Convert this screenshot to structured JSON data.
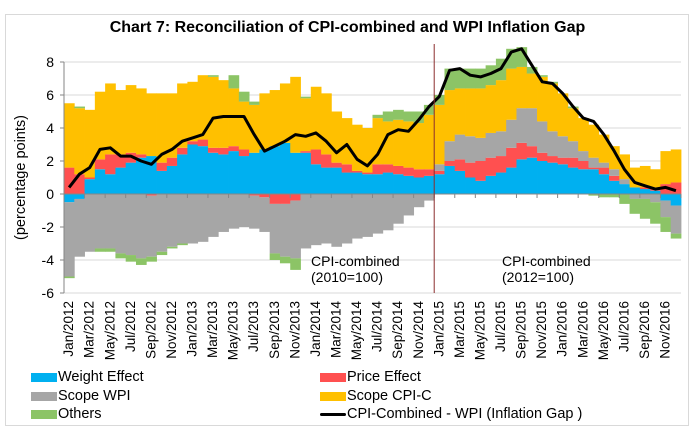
{
  "chart_data": {
    "type": "bar",
    "subtype": "stacked-bar-with-line",
    "title": "Chart 7: Reconciliation of CPI-combined and WPI Inflation Gap",
    "ylabel": "(percentage points)",
    "xlabel": "",
    "ylim": [
      -6,
      8
    ],
    "yticks": [
      -6,
      -4,
      -2,
      0,
      2,
      4,
      6,
      8
    ],
    "grid": true,
    "legend_position": "bottom",
    "categories": [
      "Jan/2012",
      "Feb/2012",
      "Mar/2012",
      "Apr/2012",
      "May/2012",
      "Jun/2012",
      "Jul/2012",
      "Aug/2012",
      "Sep/2012",
      "Oct/2012",
      "Nov/2012",
      "Dec/2012",
      "Jan/2013",
      "Feb/2013",
      "Mar/2013",
      "Apr/2013",
      "May/2013",
      "Jun/2013",
      "Jul/2013",
      "Aug/2013",
      "Sep/2013",
      "Oct/2013",
      "Nov/2013",
      "Dec/2013",
      "Jan/2014",
      "Feb/2014",
      "Mar/2014",
      "Apr/2014",
      "May/2014",
      "Jun/2014",
      "Jul/2014",
      "Aug/2014",
      "Sep/2014",
      "Oct/2014",
      "Nov/2014",
      "Dec/2014",
      "Jan/2015",
      "Feb/2015",
      "Mar/2015",
      "Apr/2015",
      "May/2015",
      "Jun/2015",
      "Jul/2015",
      "Aug/2015",
      "Sep/2015",
      "Oct/2015",
      "Nov/2015",
      "Dec/2015",
      "Jan/2016",
      "Feb/2016",
      "Mar/2016",
      "Apr/2016",
      "May/2016",
      "Jun/2016",
      "Jul/2016",
      "Aug/2016",
      "Sep/2016",
      "Oct/2016",
      "Nov/2016",
      "Dec/2016"
    ],
    "tick_labels": [
      "Jan/2012",
      "Mar/2012",
      "May/2012",
      "Jul/2012",
      "Sep/2012",
      "Nov/2012",
      "Jan/2013",
      "Mar/2013",
      "May/2013",
      "Jul/2013",
      "Sep/2013",
      "Nov/2013",
      "Jan/2014",
      "Mar/2014",
      "May/2014",
      "Jul/2014",
      "Sep/2014",
      "Nov/2014",
      "Jan/2015",
      "Mar/2015",
      "May/2015",
      "Jul/2015",
      "Sep/2015",
      "Nov/2015",
      "Jan/2016",
      "Mar/2016",
      "May/2016",
      "Jul/2016",
      "Sep/2016",
      "Nov/2016"
    ],
    "series": [
      {
        "name": "Weight Effect",
        "color": "#00b0f0",
        "kind": "bar",
        "values": [
          -0.5,
          -0.3,
          0.9,
          1.5,
          1.2,
          1.6,
          1.9,
          2.2,
          2.3,
          1.4,
          1.7,
          2.4,
          3.0,
          2.9,
          2.5,
          2.4,
          2.6,
          2.3,
          2.5,
          2.7,
          2.9,
          3.1,
          2.5,
          2.5,
          1.8,
          1.6,
          1.6,
          1.3,
          1.3,
          1.2,
          1.2,
          1.3,
          1.2,
          1.1,
          1.0,
          1.1,
          1.2,
          1.7,
          1.4,
          1.0,
          0.8,
          1.1,
          1.3,
          1.6,
          2.1,
          2.2,
          2.0,
          1.9,
          1.8,
          1.6,
          1.5,
          1.5,
          1.2,
          0.8,
          0.6,
          0.4,
          0.3,
          0.2,
          -0.4,
          -0.7
        ]
      },
      {
        "name": "Price Effect",
        "color": "#ff5050",
        "kind": "bar",
        "values": [
          1.6,
          1.2,
          0.1,
          0.6,
          1.2,
          0.8,
          0.6,
          0.2,
          -0.1,
          0.5,
          0.5,
          0.4,
          0.2,
          0.4,
          0.3,
          0.4,
          0.3,
          0.4,
          -0.1,
          -0.2,
          -0.6,
          -0.6,
          -0.4,
          0.1,
          0.9,
          0.8,
          0.3,
          0.5,
          0.1,
          0.1,
          0.6,
          0.5,
          0.5,
          0.5,
          0.5,
          0.4,
          0.2,
          0.3,
          0.7,
          0.9,
          1.2,
          1.1,
          1.0,
          1.2,
          1.0,
          0.7,
          0.5,
          0.4,
          0.4,
          0.6,
          0.5,
          0.1,
          0.4,
          0.3,
          0.0,
          0.0,
          0.1,
          0.2,
          0.6,
          0.7
        ]
      },
      {
        "name": "Scope WPI",
        "color": "#a6a6a6",
        "kind": "bar",
        "values": [
          -4.5,
          -3.5,
          -3.5,
          -3.3,
          -3.3,
          -3.6,
          -3.7,
          -3.9,
          -3.7,
          -3.5,
          -3.2,
          -3.0,
          -3.0,
          -2.9,
          -2.6,
          -2.3,
          -2.1,
          -2.0,
          -2.0,
          -2.1,
          -3.0,
          -3.2,
          -3.5,
          -3.3,
          -3.1,
          -3.0,
          -3.2,
          -3.0,
          -2.7,
          -2.6,
          -2.4,
          -2.2,
          -1.8,
          -1.3,
          -0.8,
          -0.4,
          0.4,
          1.2,
          1.5,
          1.6,
          1.4,
          1.5,
          1.5,
          1.7,
          2.1,
          2.3,
          1.9,
          1.5,
          1.3,
          1.0,
          0.6,
          0.6,
          0.3,
          0.4,
          0.3,
          -0.3,
          -0.3,
          -0.5,
          -1.0,
          -1.7
        ]
      },
      {
        "name": "Scope CPI-C",
        "color": "#ffc000",
        "kind": "bar",
        "values": [
          3.9,
          4.0,
          4.1,
          4.1,
          4.3,
          3.9,
          4.1,
          4.0,
          3.8,
          4.2,
          3.9,
          3.9,
          3.6,
          3.9,
          4.3,
          4.1,
          3.5,
          2.9,
          2.9,
          3.4,
          3.4,
          3.6,
          4.6,
          3.2,
          3.8,
          3.7,
          3.1,
          2.8,
          2.8,
          2.7,
          2.8,
          2.6,
          2.8,
          2.8,
          2.8,
          3.3,
          3.6,
          3.1,
          2.8,
          2.9,
          3.0,
          2.9,
          3.1,
          3.1,
          2.5,
          2.1,
          2.7,
          2.9,
          2.6,
          2.0,
          2.0,
          2.0,
          1.7,
          1.4,
          1.5,
          1.2,
          1.3,
          1.1,
          2.0,
          2.0
        ]
      },
      {
        "name": "Others",
        "color": "#8cc466",
        "kind": "bar",
        "values": [
          -0.1,
          0.1,
          0.0,
          -0.2,
          -0.2,
          -0.3,
          -0.4,
          -0.4,
          -0.3,
          -0.2,
          -0.1,
          -0.1,
          0.0,
          0.0,
          0.1,
          0.0,
          0.8,
          0.6,
          0.2,
          0.0,
          -0.4,
          -0.4,
          -0.7,
          0.1,
          0.0,
          0.0,
          0.0,
          0.0,
          0.0,
          0.0,
          0.2,
          0.6,
          0.6,
          0.6,
          0.7,
          0.6,
          0.6,
          1.3,
          1.2,
          1.2,
          1.2,
          1.2,
          1.3,
          1.2,
          1.2,
          0.4,
          0.1,
          0.1,
          0.0,
          0.1,
          0.0,
          -0.1,
          -0.2,
          -0.2,
          -0.6,
          -0.9,
          -1.2,
          -1.3,
          -0.9,
          -0.3
        ]
      },
      {
        "name": "CPI-Combined - WPI (Inflation Gap )",
        "color": "#000000",
        "kind": "line",
        "values": [
          0.4,
          1.2,
          1.6,
          2.7,
          2.8,
          2.3,
          2.3,
          2.0,
          1.8,
          2.4,
          2.7,
          3.2,
          3.4,
          3.6,
          4.6,
          4.7,
          4.7,
          4.7,
          3.6,
          2.6,
          2.9,
          3.2,
          3.6,
          3.5,
          3.7,
          3.2,
          2.5,
          3.0,
          2.1,
          1.7,
          2.4,
          3.6,
          3.9,
          3.8,
          4.5,
          5.3,
          5.9,
          7.5,
          7.6,
          7.2,
          7.1,
          7.3,
          7.6,
          8.6,
          8.8,
          7.8,
          6.8,
          6.7,
          6.1,
          5.3,
          4.6,
          4.4,
          3.6,
          2.6,
          1.5,
          0.7,
          0.5,
          0.3,
          0.4,
          0.2
        ]
      }
    ],
    "annotations": [
      {
        "text_line1": "CPI-combined",
        "text_line2": "(2010=100)",
        "near": "Sep/2014"
      },
      {
        "text_line1": "CPI-combined",
        "text_line2": "(2012=100)",
        "near": "Jan/2016"
      }
    ],
    "divider_between": [
      "Dec/2014",
      "Jan/2015"
    ]
  },
  "legend": [
    {
      "label": "Weight Effect",
      "color": "#00b0f0",
      "kind": "bar"
    },
    {
      "label": "Price Effect",
      "color": "#ff5050",
      "kind": "bar"
    },
    {
      "label": "Scope WPI",
      "color": "#a6a6a6",
      "kind": "bar"
    },
    {
      "label": "Scope CPI-C",
      "color": "#ffc000",
      "kind": "bar"
    },
    {
      "label": "Others",
      "color": "#8cc466",
      "kind": "bar"
    },
    {
      "label": "CPI-Combined - WPI (Inflation Gap )",
      "color": "#000000",
      "kind": "line"
    }
  ]
}
